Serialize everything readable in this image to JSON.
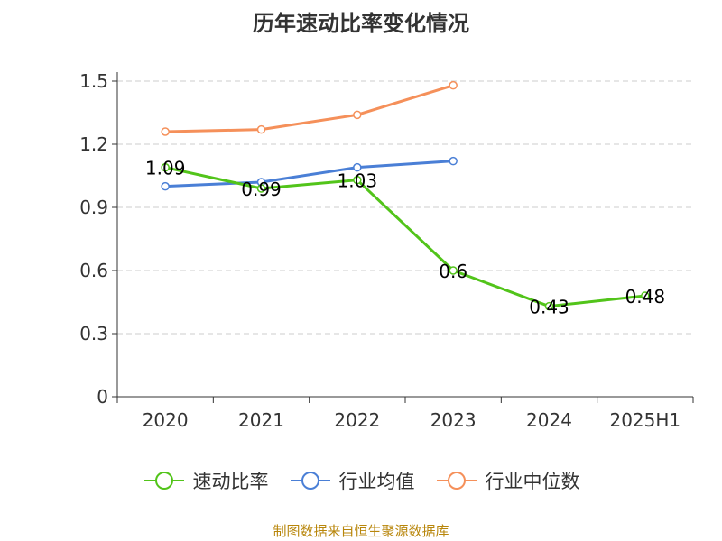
{
  "chart_data": {
    "type": "line",
    "title": "历年速动比率变化情况",
    "categories": [
      "2020",
      "2021",
      "2022",
      "2023",
      "2024",
      "2025H1"
    ],
    "ylim": [
      0,
      1.5
    ],
    "y_ticks": [
      "0",
      "0.3",
      "0.6",
      "0.9",
      "1.2",
      "1.5"
    ],
    "grid": true,
    "legend_position": "bottom",
    "series": [
      {
        "name": "速动比率",
        "color": "#52c41a",
        "values": [
          1.09,
          0.99,
          1.03,
          0.6,
          0.43,
          0.48
        ],
        "labels": [
          "1.09",
          "0.99",
          "1.03",
          "0.6",
          "0.43",
          "0.48"
        ]
      },
      {
        "name": "行业均值",
        "color": "#4a7fd6",
        "values": [
          1.0,
          1.02,
          1.09,
          1.12,
          null,
          null
        ]
      },
      {
        "name": "行业中位数",
        "color": "#f5905a",
        "values": [
          1.26,
          1.27,
          1.34,
          1.48,
          null,
          null
        ]
      }
    ]
  },
  "footer": "制图数据来自恒生聚源数据库"
}
